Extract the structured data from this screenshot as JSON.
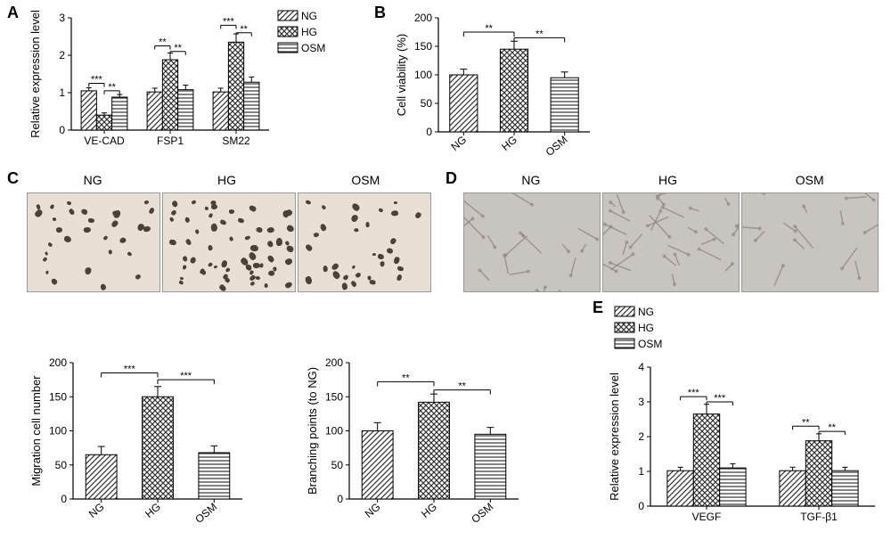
{
  "panelA": {
    "label": "A",
    "ylabel": "Relative expression level",
    "groups": [
      "VE-CAD",
      "FSP1",
      "SM22"
    ],
    "series": [
      "NG",
      "HG",
      "OSM"
    ],
    "values": {
      "VE-CAD": [
        1.05,
        0.4,
        0.88
      ],
      "FSP1": [
        1.02,
        1.88,
        1.08
      ],
      "SM22": [
        1.02,
        2.35,
        1.28
      ]
    },
    "errors": {
      "VE-CAD": [
        0.08,
        0.06,
        0.07
      ],
      "FSP1": [
        0.1,
        0.18,
        0.12
      ],
      "SM22": [
        0.1,
        0.22,
        0.14
      ]
    },
    "ylim": [
      0,
      3
    ],
    "yticks": [
      0,
      1,
      2,
      3
    ],
    "sig": [
      {
        "group": 0,
        "from": 0,
        "to": 1,
        "label": "***",
        "y": 1.25
      },
      {
        "group": 0,
        "from": 1,
        "to": 2,
        "label": "**",
        "y": 1.05
      },
      {
        "group": 1,
        "from": 0,
        "to": 1,
        "label": "**",
        "y": 2.25
      },
      {
        "group": 1,
        "from": 1,
        "to": 2,
        "label": "**",
        "y": 2.1
      },
      {
        "group": 2,
        "from": 0,
        "to": 1,
        "label": "***",
        "y": 2.8
      },
      {
        "group": 2,
        "from": 1,
        "to": 2,
        "label": "**",
        "y": 2.6
      }
    ],
    "patterns": [
      "diag",
      "check",
      "horiz"
    ],
    "colors": {
      "bar_fill": "#ffffff",
      "bar_stroke": "#000000",
      "pattern": "#333333"
    }
  },
  "panelB": {
    "label": "B",
    "ylabel": "Cell viability (%)",
    "categories": [
      "NG",
      "HG",
      "OSM"
    ],
    "values": [
      100,
      145,
      95
    ],
    "errors": [
      10,
      14,
      10
    ],
    "ylim": [
      0,
      200
    ],
    "yticks": [
      0,
      50,
      100,
      150,
      200
    ],
    "sig": [
      {
        "from": 0,
        "to": 1,
        "label": "**",
        "y": 175
      },
      {
        "from": 1,
        "to": 2,
        "label": "**",
        "y": 165
      }
    ],
    "patterns": [
      "diag",
      "check",
      "horiz"
    ]
  },
  "panelC": {
    "label": "C",
    "img_labels": [
      "NG",
      "HG",
      "OSM"
    ],
    "chart_ylabel": "Migration cell number",
    "categories": [
      "NG",
      "HG",
      "OSM"
    ],
    "values": [
      65,
      150,
      68
    ],
    "errors": [
      12,
      15,
      10
    ],
    "ylim": [
      0,
      200
    ],
    "yticks": [
      0,
      50,
      100,
      150,
      200
    ],
    "sig": [
      {
        "from": 0,
        "to": 1,
        "label": "***",
        "y": 185
      },
      {
        "from": 1,
        "to": 2,
        "label": "***",
        "y": 175
      }
    ],
    "patterns": [
      "diag",
      "check",
      "horiz"
    ],
    "cell_counts": [
      30,
      60,
      32
    ]
  },
  "panelD": {
    "label": "D",
    "img_labels": [
      "NG",
      "HG",
      "OSM"
    ],
    "chart_ylabel": "Branching points (to NG)",
    "categories": [
      "NG",
      "HG",
      "OSM"
    ],
    "values": [
      100,
      142,
      95
    ],
    "errors": [
      12,
      12,
      10
    ],
    "ylim": [
      0,
      200
    ],
    "yticks": [
      0,
      50,
      100,
      150,
      200
    ],
    "sig": [
      {
        "from": 0,
        "to": 1,
        "label": "**",
        "y": 172
      },
      {
        "from": 1,
        "to": 2,
        "label": "**",
        "y": 160
      }
    ],
    "patterns": [
      "diag",
      "check",
      "horiz"
    ]
  },
  "panelE": {
    "label": "E",
    "ylabel": "Relative expression level",
    "groups": [
      "VEGF",
      "TGF-β1"
    ],
    "series": [
      "NG",
      "HG",
      "OSM"
    ],
    "values": {
      "VEGF": [
        1.02,
        2.65,
        1.1
      ],
      "TGF-β1": [
        1.02,
        1.88,
        1.02
      ]
    },
    "errors": {
      "VEGF": [
        0.1,
        0.28,
        0.12
      ],
      "TGF-β1": [
        0.1,
        0.2,
        0.1
      ]
    },
    "ylim": [
      0,
      4
    ],
    "yticks": [
      0,
      1,
      2,
      3,
      4
    ],
    "sig": [
      {
        "group": 0,
        "from": 0,
        "to": 1,
        "label": "***",
        "y": 3.15
      },
      {
        "group": 0,
        "from": 1,
        "to": 2,
        "label": "***",
        "y": 3.0
      },
      {
        "group": 1,
        "from": 0,
        "to": 1,
        "label": "**",
        "y": 2.3
      },
      {
        "group": 1,
        "from": 1,
        "to": 2,
        "label": "**",
        "y": 2.15
      }
    ],
    "patterns": [
      "diag",
      "check",
      "horiz"
    ]
  },
  "legend": {
    "items": [
      "NG",
      "HG",
      "OSM"
    ],
    "patterns": [
      "diag",
      "check",
      "horiz"
    ]
  },
  "style": {
    "axis_color": "#000000",
    "axis_width": 1.2,
    "tick_fontsize": 12,
    "label_fontsize": 13,
    "bg": "#ffffff"
  }
}
